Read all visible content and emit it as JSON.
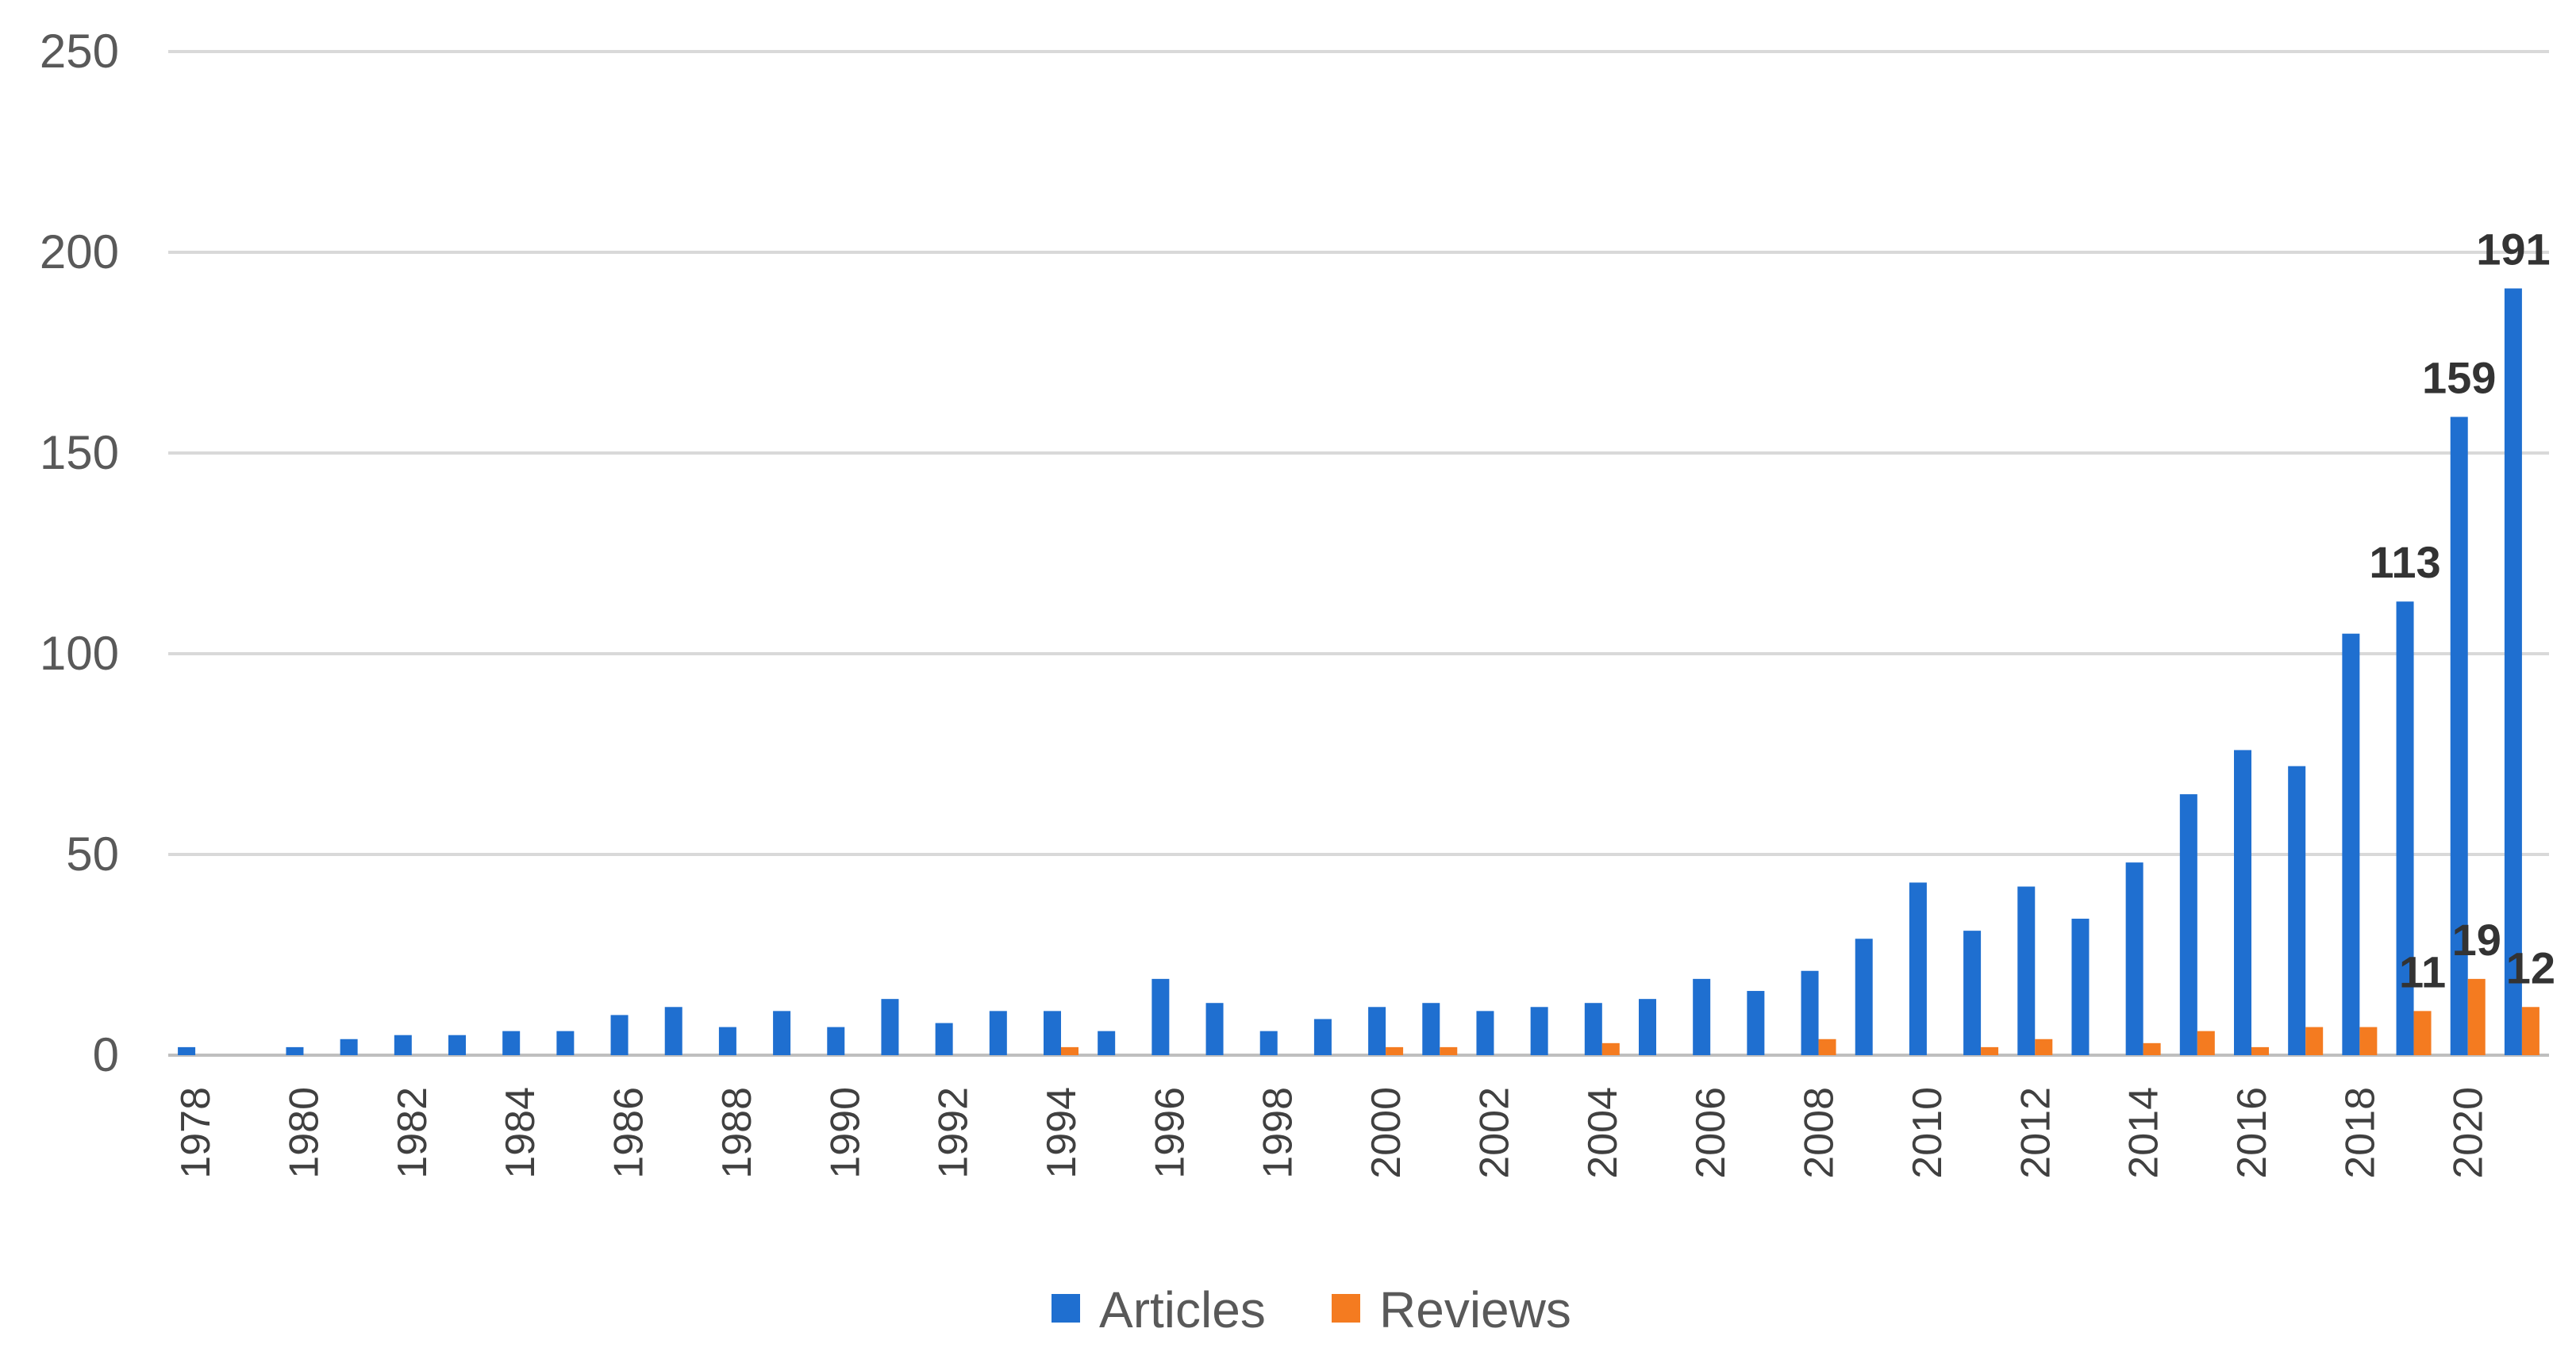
{
  "chart_data": {
    "type": "bar",
    "categories": [
      "1978",
      "1979",
      "1980",
      "1981",
      "1982",
      "1983",
      "1984",
      "1985",
      "1986",
      "1987",
      "1988",
      "1989",
      "1990",
      "1991",
      "1992",
      "1993",
      "1994",
      "1995",
      "1996",
      "1997",
      "1998",
      "1999",
      "2000",
      "2001",
      "2002",
      "2003",
      "2004",
      "2005",
      "2006",
      "2007",
      "2008",
      "2009",
      "2010",
      "2011",
      "2012",
      "2013",
      "2014",
      "2015",
      "2016",
      "2017",
      "2018",
      "2019",
      "2020",
      "2021"
    ],
    "x_tick_labels": [
      "1978",
      "1980",
      "1982",
      "1984",
      "1986",
      "1988",
      "1990",
      "1992",
      "1994",
      "1996",
      "1998",
      "2000",
      "2002",
      "2004",
      "2006",
      "2008",
      "2010",
      "2012",
      "2014",
      "2016",
      "2018",
      "2020"
    ],
    "series": [
      {
        "name": "Articles",
        "color": "#1f6fd0",
        "values": [
          2,
          0,
          2,
          4,
          5,
          5,
          6,
          6,
          10,
          12,
          7,
          11,
          7,
          14,
          8,
          11,
          11,
          6,
          19,
          13,
          6,
          9,
          12,
          13,
          11,
          12,
          13,
          14,
          19,
          16,
          21,
          29,
          43,
          31,
          42,
          34,
          48,
          65,
          76,
          72,
          105,
          113,
          159,
          191
        ],
        "data_labels": [
          {
            "category": "2019",
            "text": "113"
          },
          {
            "category": "2020",
            "text": "159"
          },
          {
            "category": "2021",
            "text": "191"
          }
        ]
      },
      {
        "name": "Reviews",
        "color": "#f47b20",
        "values": [
          0,
          0,
          0,
          0,
          0,
          0,
          0,
          0,
          0,
          0,
          0,
          0,
          0,
          0,
          0,
          0,
          2,
          0,
          0,
          0,
          0,
          0,
          2,
          2,
          0,
          0,
          3,
          0,
          0,
          0,
          4,
          0,
          0,
          2,
          4,
          0,
          3,
          6,
          2,
          7,
          7,
          11,
          19,
          12
        ],
        "data_labels": [
          {
            "category": "2019",
            "text": "11"
          },
          {
            "category": "2020",
            "text": "19"
          },
          {
            "category": "2021",
            "text": "12"
          }
        ]
      }
    ],
    "yticks": [
      0,
      50,
      100,
      150,
      200,
      250
    ],
    "ylim": [
      0,
      250
    ],
    "grid": true,
    "legend_position": "bottom"
  }
}
